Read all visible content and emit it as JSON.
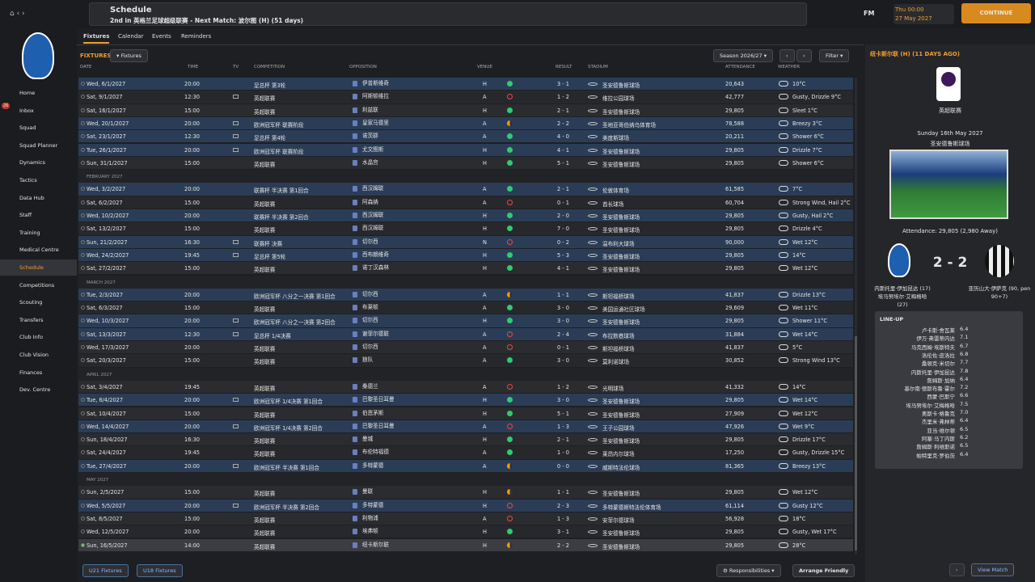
{
  "topbar": {
    "title": "Schedule",
    "subtitle": "2nd in 英格兰足球超级联赛 - Next Match: 波尔图 (H) (51 days)",
    "logo": "FM",
    "time": "Thu 00:00",
    "date": "27 May 2027",
    "continue": "CONTINUE"
  },
  "nav": {
    "badge": "26",
    "items": [
      "Home",
      "Inbox",
      "Squad",
      "Squad Planner",
      "Dynamics",
      "Tactics",
      "Data Hub",
      "Staff",
      "Training",
      "Medical Centre",
      "Schedule",
      "Competitions",
      "Scouting",
      "Transfers",
      "Club Info",
      "Club Vision",
      "Finances",
      "Dev. Centre"
    ],
    "active": 10
  },
  "tabs": [
    "Fixtures",
    "Calendar",
    "Events",
    "Reminders"
  ],
  "toolbar": {
    "heading": "FIXTURES",
    "view": "Fixtures",
    "season": "Season 2026/27",
    "filter": "Filter"
  },
  "columns": [
    "DATE",
    "TIME",
    "TV",
    "COMPETITION",
    "OPPOSITION",
    "VENUE",
    "RESULT",
    "STADIUM",
    "ATTENDANCE",
    "WEATHER"
  ],
  "fixtures": {
    "groups": [
      {
        "rows": [
          {
            "date": "Wed, 6/1/2027",
            "time": "20:00",
            "tv": false,
            "competition": "足总杯 第3轮",
            "opposition": "伊普斯维奇",
            "venue": "H",
            "score": "3 - 1",
            "stadium": "圣安德鲁斯球场",
            "attendance": "20,643",
            "weather": "10°C"
          },
          {
            "date": "Sat, 9/1/2027",
            "time": "12:30",
            "tv": true,
            "competition": "英超联赛",
            "opposition": "阿斯顿维拉",
            "venue": "A",
            "score": "1 - 2",
            "stadium": "维拉公园球场",
            "attendance": "42,777",
            "weather": "Gusty, Drizzle 9°C"
          },
          {
            "date": "Sat, 16/1/2027",
            "time": "15:00",
            "tv": false,
            "competition": "英超联赛",
            "opposition": "利兹联",
            "venue": "H",
            "score": "2 - 1",
            "stadium": "圣安德鲁斯球场",
            "attendance": "29,805",
            "weather": "Sleet 1°C"
          },
          {
            "date": "Wed, 20/1/2027",
            "time": "20:00",
            "tv": true,
            "competition": "欧洲冠军杯 联赛阶段",
            "opposition": "皇家马德里",
            "venue": "A",
            "score": "2 - 2",
            "stadium": "圣地亚哥伯纳乌体育场",
            "attendance": "78,588",
            "weather": "Breezy 3°C"
          },
          {
            "date": "Sat, 23/1/2027",
            "time": "12:30",
            "tv": true,
            "competition": "足总杯 第4轮",
            "opposition": "诺茨郡",
            "venue": "A",
            "score": "4 - 0",
            "stadium": "美度斯球场",
            "attendance": "20,211",
            "weather": "Shower 6°C"
          },
          {
            "date": "Tue, 26/1/2027",
            "time": "20:00",
            "tv": true,
            "competition": "欧洲冠军杯 联赛阶段",
            "opposition": "尤文图斯",
            "venue": "H",
            "score": "4 - 1",
            "stadium": "圣安德鲁斯球场",
            "attendance": "29,805",
            "weather": "Drizzle 7°C"
          },
          {
            "date": "Sun, 31/1/2027",
            "time": "15:00",
            "tv": false,
            "competition": "英超联赛",
            "opposition": "水晶宫",
            "venue": "H",
            "score": "5 - 1",
            "stadium": "圣安德鲁斯球场",
            "attendance": "29,805",
            "weather": "Shower 6°C"
          }
        ]
      },
      {
        "label": "FEBRUARY 2027",
        "rows": [
          {
            "date": "Wed, 3/2/2027",
            "time": "20:00",
            "tv": false,
            "competition": "联赛杯 半决赛 第1回合",
            "opposition": "西汉姆联",
            "venue": "A",
            "score": "2 - 1",
            "stadium": "伦敦体育场",
            "attendance": "61,585",
            "weather": "7°C"
          },
          {
            "date": "Sat, 6/2/2027",
            "time": "15:00",
            "tv": false,
            "competition": "英超联赛",
            "opposition": "阿森纳",
            "venue": "A",
            "score": "0 - 1",
            "stadium": "酋长球场",
            "attendance": "60,704",
            "weather": "Strong Wind, Hail 2°C"
          },
          {
            "date": "Wed, 10/2/2027",
            "time": "20:00",
            "tv": false,
            "competition": "联赛杯 半决赛 第2回合",
            "opposition": "西汉姆联",
            "venue": "H",
            "score": "2 - 0",
            "stadium": "圣安德鲁斯球场",
            "attendance": "29,805",
            "weather": "Gusty, Hail 2°C"
          },
          {
            "date": "Sat, 13/2/2027",
            "time": "15:00",
            "tv": false,
            "competition": "英超联赛",
            "opposition": "西汉姆联",
            "venue": "H",
            "score": "7 - 0",
            "stadium": "圣安德鲁斯球场",
            "attendance": "29,805",
            "weather": "Drizzle 4°C"
          },
          {
            "date": "Sun, 21/2/2027",
            "time": "16:30",
            "tv": true,
            "competition": "联赛杯 决赛",
            "opposition": "切尔西",
            "venue": "N",
            "score": "0 - 2",
            "stadium": "温布利大球场",
            "attendance": "90,000",
            "weather": "Wet 12°C"
          },
          {
            "date": "Wed, 24/2/2027",
            "time": "19:45",
            "tv": true,
            "competition": "足总杯 第5轮",
            "opposition": "西布朗维奇",
            "venue": "H",
            "score": "5 - 3",
            "stadium": "圣安德鲁斯球场",
            "attendance": "29,805",
            "weather": "14°C"
          },
          {
            "date": "Sat, 27/2/2027",
            "time": "15:00",
            "tv": false,
            "competition": "英超联赛",
            "opposition": "诺丁汉森林",
            "venue": "H",
            "score": "4 - 1",
            "stadium": "圣安德鲁斯球场",
            "attendance": "29,805",
            "weather": "Wet 12°C"
          }
        ]
      },
      {
        "label": "MARCH 2027",
        "rows": [
          {
            "date": "Tue, 2/3/2027",
            "time": "20:00",
            "tv": false,
            "competition": "欧洲冠军杯 八分之一决赛 第1回合",
            "opposition": "切尔西",
            "venue": "A",
            "score": "1 - 1",
            "stadium": "斯坦福桥球场",
            "attendance": "41,837",
            "weather": "Drizzle 13°C"
          },
          {
            "date": "Sat, 6/3/2027",
            "time": "15:00",
            "tv": false,
            "competition": "英超联赛",
            "opposition": "布莱顿",
            "venue": "A",
            "score": "3 - 0",
            "stadium": "美国运通社区球场",
            "attendance": "29,609",
            "weather": "Wet 11°C"
          },
          {
            "date": "Wed, 10/3/2027",
            "time": "20:00",
            "tv": true,
            "competition": "欧洲冠军杯 八分之一决赛 第2回合",
            "opposition": "切尔西",
            "venue": "H",
            "score": "3 - 0",
            "stadium": "圣安德鲁斯球场",
            "attendance": "29,805",
            "weather": "Shower 11°C"
          },
          {
            "date": "Sat, 13/3/2027",
            "time": "12:30",
            "tv": true,
            "competition": "足总杯 1/4决赛",
            "opposition": "谢菲尔德联",
            "venue": "A",
            "score": "2 - 4",
            "stadium": "布拉默巷球场",
            "attendance": "31,884",
            "weather": "Wet 14°C"
          },
          {
            "date": "Wed, 17/3/2027",
            "time": "20:00",
            "tv": false,
            "competition": "英超联赛",
            "opposition": "切尔西",
            "venue": "A",
            "score": "0 - 1",
            "stadium": "斯坦福桥球场",
            "attendance": "41,837",
            "weather": "5°C"
          },
          {
            "date": "Sat, 20/3/2027",
            "time": "15:00",
            "tv": false,
            "competition": "英超联赛",
            "opposition": "狼队",
            "venue": "A",
            "score": "3 - 0",
            "stadium": "莫利诺球场",
            "attendance": "30,852",
            "weather": "Strong Wind 13°C"
          }
        ]
      },
      {
        "label": "APRIL 2027",
        "rows": [
          {
            "date": "Sat, 3/4/2027",
            "time": "19:45",
            "tv": false,
            "competition": "英超联赛",
            "opposition": "桑德兰",
            "venue": "A",
            "score": "1 - 2",
            "stadium": "光明球场",
            "attendance": "41,332",
            "weather": "14°C"
          },
          {
            "date": "Tue, 6/4/2027",
            "time": "20:00",
            "tv": true,
            "competition": "欧洲冠军杯 1/4决赛 第1回合",
            "opposition": "巴黎圣日耳曼",
            "venue": "H",
            "score": "3 - 0",
            "stadium": "圣安德鲁斯球场",
            "attendance": "29,805",
            "weather": "Wet 14°C"
          },
          {
            "date": "Sat, 10/4/2027",
            "time": "15:00",
            "tv": false,
            "competition": "英超联赛",
            "opposition": "伯恩茅斯",
            "venue": "H",
            "score": "5 - 1",
            "stadium": "圣安德鲁斯球场",
            "attendance": "27,909",
            "weather": "Wet 12°C"
          },
          {
            "date": "Wed, 14/4/2027",
            "time": "20:00",
            "tv": true,
            "competition": "欧洲冠军杯 1/4决赛 第2回合",
            "opposition": "巴黎圣日耳曼",
            "venue": "A",
            "score": "1 - 3",
            "stadium": "王子公园球场",
            "attendance": "47,926",
            "weather": "Wet 9°C"
          },
          {
            "date": "Sun, 18/4/2027",
            "time": "16:30",
            "tv": false,
            "competition": "英超联赛",
            "opposition": "曼城",
            "venue": "H",
            "score": "2 - 1",
            "stadium": "圣安德鲁斯球场",
            "attendance": "29,805",
            "weather": "Drizzle 17°C"
          },
          {
            "date": "Sat, 24/4/2027",
            "time": "19:45",
            "tv": false,
            "competition": "英超联赛",
            "opposition": "布伦特福德",
            "venue": "A",
            "score": "1 - 0",
            "stadium": "莱昂内尔球场",
            "attendance": "17,250",
            "weather": "Gusty, Drizzle 15°C"
          },
          {
            "date": "Tue, 27/4/2027",
            "time": "20:00",
            "tv": true,
            "competition": "欧洲冠军杯 半决赛 第1回合",
            "opposition": "多特蒙德",
            "venue": "A",
            "score": "0 - 0",
            "stadium": "威斯特法伦球场",
            "attendance": "81,365",
            "weather": "Breezy 13°C"
          }
        ]
      },
      {
        "label": "MAY 2027",
        "rows": [
          {
            "date": "Sun, 2/5/2027",
            "time": "15:00",
            "tv": false,
            "competition": "英超联赛",
            "opposition": "曼联",
            "venue": "H",
            "score": "1 - 1",
            "stadium": "圣安德鲁斯球场",
            "attendance": "29,805",
            "weather": "Wet 12°C"
          },
          {
            "date": "Wed, 5/5/2027",
            "time": "20:00",
            "tv": true,
            "competition": "欧洲冠军杯 半决赛 第2回合",
            "opposition": "多特蒙德",
            "venue": "H",
            "score": "2 - 3",
            "stadium": "多特蒙德斯特法伦体育场",
            "attendance": "61,114",
            "weather": "Gusty 12°C"
          },
          {
            "date": "Sat, 8/5/2027",
            "time": "15:00",
            "tv": false,
            "competition": "英超联赛",
            "opposition": "利物浦",
            "venue": "A",
            "score": "1 - 3",
            "stadium": "安菲尔德球场",
            "attendance": "56,928",
            "weather": "18°C"
          },
          {
            "date": "Wed, 12/5/2027",
            "time": "20:00",
            "tv": false,
            "competition": "英超联赛",
            "opposition": "埃弗顿",
            "venue": "H",
            "score": "3 - 1",
            "stadium": "圣安德鲁斯球场",
            "attendance": "29,805",
            "weather": "Gusty, Wet 17°C"
          },
          {
            "date": "Sun, 16/5/2027",
            "time": "14:00",
            "tv": false,
            "competition": "英超联赛",
            "opposition": "纽卡斯尔联",
            "venue": "H",
            "score": "2 - 2",
            "stadium": "圣安德鲁斯球场",
            "attendance": "29,805",
            "weather": "28°C"
          }
        ]
      }
    ]
  },
  "bottom": [
    "U21 Fixtures",
    "U18 Fixtures",
    "Responsibilities",
    "Arrange Friendly"
  ],
  "match": {
    "heading": "纽卡斯尔联 (H) (11 DAYS AGO)",
    "competition": "英超联赛",
    "date": "Sunday 16th May 2027",
    "stadium": "圣安德鲁斯球场",
    "attendance": "Attendance: 29,805 (2,980 Away)",
    "score": "2 - 2",
    "home_scorers": "内斯托里·伊加昆达 (17) 埃马努埃尔·艾梅格哈 (27)",
    "away_scorers": "亚历山大·伊萨克 (90, pen 90+7)",
    "lineup_title": "LINE-UP",
    "lineup": [
      [
        "卢卡斯·舍瓦莱",
        "6.4"
      ],
      [
        "伊万·弗雷蒂内达",
        "7.1"
      ],
      [
        "马克西姆·埃斯特夫",
        "6.7"
      ],
      [
        "洛伦佐·皮洛拉",
        "6.8"
      ],
      [
        "桑顿克·米切尔",
        "7.7"
      ],
      [
        "内斯托里·伊加昆达",
        "7.8"
      ],
      [
        "詹姆斯·加纳",
        "6.4"
      ],
      [
        "基尔南·德斯布鲁·霍尔",
        "7.2"
      ],
      [
        "西蒙·巴斯宁",
        "6.6"
      ],
      [
        "埃马努埃尔·艾梅格哈",
        "7.5"
      ],
      [
        "奥斯卡·格鲁克",
        "7.0"
      ],
      [
        "杰里米·弗林蒂",
        "6.4"
      ],
      [
        "亚当·维尔顿",
        "6.5"
      ],
      [
        "阿塞·马丁内斯",
        "6.2"
      ],
      [
        "詹姆斯·利维斯诺",
        "6.5"
      ],
      [
        "帕特里克·罗伯茨",
        "6.4"
      ]
    ],
    "view": "View Match"
  }
}
